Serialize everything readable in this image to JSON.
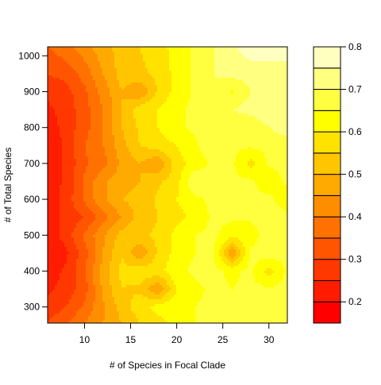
{
  "chart_data": {
    "type": "heatmap",
    "title": "",
    "xlabel": "# of Species in Focal Clade",
    "ylabel": "# of Total Species",
    "xlim": [
      6,
      32
    ],
    "ylim": [
      255,
      1025
    ],
    "xticks": [
      10,
      15,
      20,
      25,
      30
    ],
    "yticks": [
      300,
      400,
      500,
      600,
      700,
      800,
      900,
      1000
    ],
    "x": [
      6,
      8,
      10,
      12,
      14,
      16,
      18,
      20,
      22,
      24,
      26,
      28,
      30,
      32
    ],
    "y": [
      255,
      300,
      350,
      400,
      450,
      500,
      550,
      600,
      650,
      700,
      750,
      800,
      850,
      900,
      950,
      1025
    ],
    "z": [
      [
        0.3,
        0.34,
        0.4,
        0.45,
        0.5,
        0.55,
        0.58,
        0.62,
        0.65,
        0.66,
        0.66,
        0.66,
        0.66,
        0.66
      ],
      [
        0.27,
        0.3,
        0.36,
        0.44,
        0.52,
        0.58,
        0.62,
        0.64,
        0.65,
        0.66,
        0.66,
        0.66,
        0.66,
        0.66
      ],
      [
        0.24,
        0.27,
        0.33,
        0.46,
        0.55,
        0.54,
        0.45,
        0.6,
        0.64,
        0.66,
        0.65,
        0.66,
        0.66,
        0.66
      ],
      [
        0.22,
        0.26,
        0.34,
        0.47,
        0.56,
        0.58,
        0.58,
        0.64,
        0.66,
        0.66,
        0.64,
        0.66,
        0.58,
        0.66
      ],
      [
        0.2,
        0.24,
        0.33,
        0.45,
        0.55,
        0.45,
        0.56,
        0.62,
        0.65,
        0.66,
        0.45,
        0.66,
        0.68,
        0.66
      ],
      [
        0.22,
        0.27,
        0.36,
        0.44,
        0.52,
        0.54,
        0.56,
        0.62,
        0.65,
        0.66,
        0.62,
        0.62,
        0.68,
        0.68
      ],
      [
        0.22,
        0.27,
        0.3,
        0.38,
        0.45,
        0.52,
        0.55,
        0.58,
        0.62,
        0.66,
        0.66,
        0.66,
        0.68,
        0.66
      ],
      [
        0.22,
        0.27,
        0.36,
        0.44,
        0.5,
        0.52,
        0.56,
        0.6,
        0.64,
        0.66,
        0.66,
        0.66,
        0.66,
        0.62
      ],
      [
        0.22,
        0.26,
        0.36,
        0.44,
        0.48,
        0.5,
        0.54,
        0.58,
        0.7,
        0.66,
        0.66,
        0.66,
        0.62,
        0.66
      ],
      [
        0.21,
        0.26,
        0.34,
        0.38,
        0.46,
        0.5,
        0.45,
        0.58,
        0.62,
        0.66,
        0.66,
        0.58,
        0.66,
        0.66
      ],
      [
        0.21,
        0.26,
        0.35,
        0.4,
        0.48,
        0.55,
        0.58,
        0.6,
        0.64,
        0.7,
        0.66,
        0.66,
        0.66,
        0.66
      ],
      [
        0.22,
        0.27,
        0.33,
        0.4,
        0.5,
        0.56,
        0.6,
        0.64,
        0.66,
        0.68,
        0.66,
        0.66,
        0.7,
        0.74
      ],
      [
        0.24,
        0.27,
        0.33,
        0.4,
        0.5,
        0.58,
        0.6,
        0.64,
        0.66,
        0.68,
        0.7,
        0.72,
        0.74,
        0.74
      ],
      [
        0.26,
        0.28,
        0.34,
        0.42,
        0.5,
        0.45,
        0.56,
        0.62,
        0.66,
        0.7,
        0.64,
        0.7,
        0.72,
        0.72
      ],
      [
        0.3,
        0.32,
        0.37,
        0.45,
        0.52,
        0.54,
        0.56,
        0.62,
        0.66,
        0.7,
        0.72,
        0.72,
        0.74,
        0.74
      ],
      [
        0.35,
        0.38,
        0.43,
        0.48,
        0.52,
        0.55,
        0.58,
        0.62,
        0.66,
        0.7,
        0.74,
        0.78,
        0.76,
        0.76
      ]
    ],
    "levels": [
      0.15,
      0.2,
      0.25,
      0.3,
      0.35,
      0.4,
      0.45,
      0.5,
      0.55,
      0.6,
      0.65,
      0.7,
      0.75,
      0.8
    ],
    "level_colors": [
      "#FF0000",
      "#FF1C00",
      "#FF3800",
      "#FF5500",
      "#FF7100",
      "#FF8D00",
      "#FFAA00",
      "#FFC600",
      "#FFE200",
      "#FFFF00",
      "#FFFF40",
      "#FFFF80",
      "#FFFFBF"
    ],
    "colorbar_ticks": [
      0.2,
      0.3,
      0.4,
      0.5,
      0.6,
      0.7,
      0.8
    ],
    "colorbar_tick_labels": [
      "0.2",
      "0.3",
      "0.4",
      "0.5",
      "0.6",
      "0.7",
      "0.8"
    ],
    "x_tick_labels": [
      "10",
      "15",
      "20",
      "25",
      "30"
    ],
    "y_tick_labels": [
      "300",
      "400",
      "500",
      "600",
      "700",
      "800",
      "900",
      "1000"
    ],
    "grid": false,
    "legend": "right colorbar"
  }
}
